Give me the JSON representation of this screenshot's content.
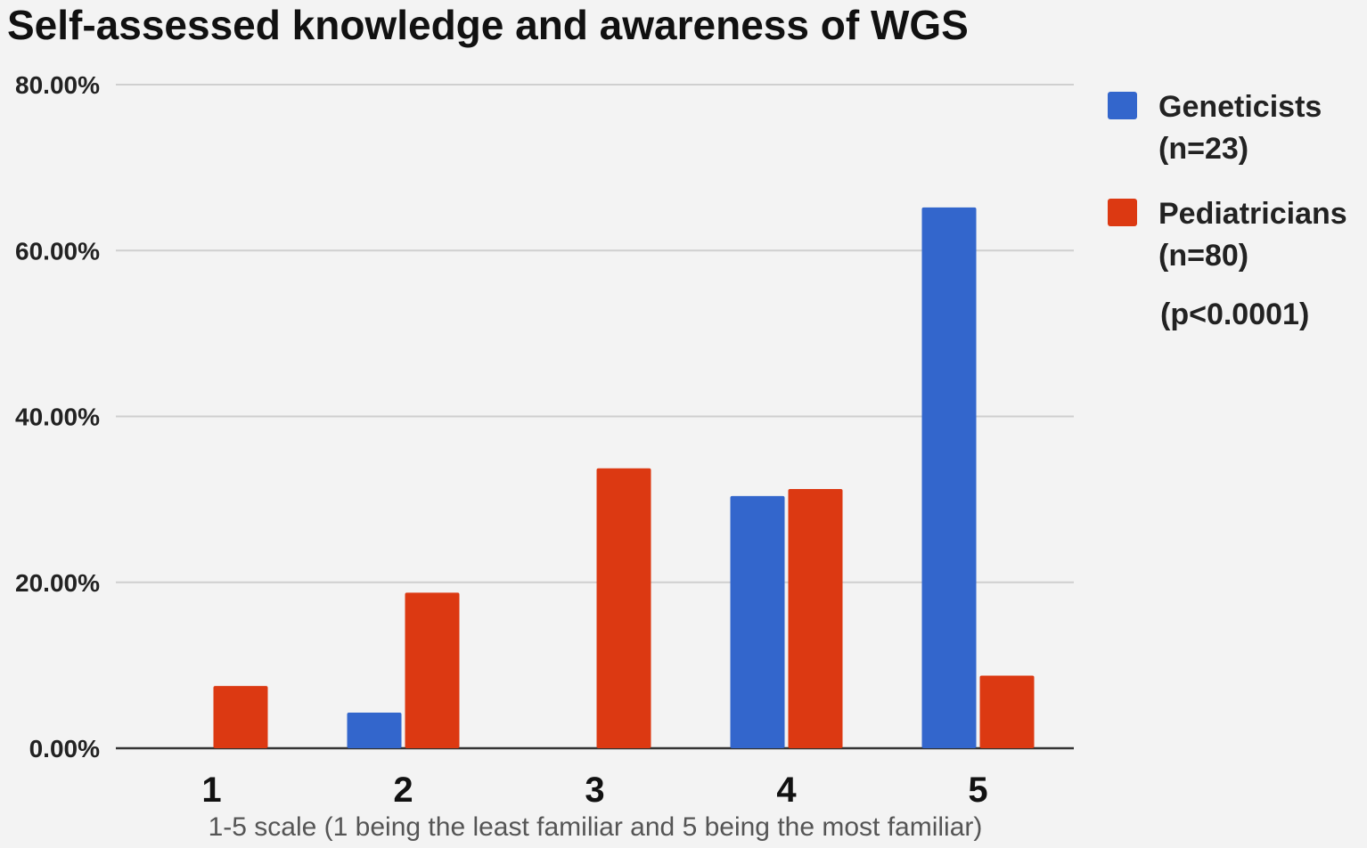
{
  "chart_data": {
    "type": "bar",
    "title": "Self-assessed knowledge and awareness of WGS",
    "xlabel": "1-5 scale (1 being the least familiar and 5 being the most familiar)",
    "ylabel": "",
    "categories": [
      "1",
      "2",
      "3",
      "4",
      "5"
    ],
    "ylim": [
      0,
      80
    ],
    "yticks": [
      0,
      20,
      40,
      60,
      80
    ],
    "ytick_labels": [
      "0.00%",
      "20.00%",
      "40.00%",
      "60.00%",
      "80.00%"
    ],
    "grid": true,
    "legend_position": "right",
    "series": [
      {
        "legend_lines": [
          "Geneticists",
          "(n=23)"
        ],
        "color": "#3366cc",
        "values": [
          0,
          4.3,
          0,
          30.4,
          65.2
        ]
      },
      {
        "legend_lines": [
          "Pediatricians",
          "(n=80)"
        ],
        "color": "#dc3912",
        "values": [
          7.5,
          18.75,
          33.75,
          31.25,
          8.75
        ]
      }
    ],
    "annotation": "(p<0.0001)"
  }
}
